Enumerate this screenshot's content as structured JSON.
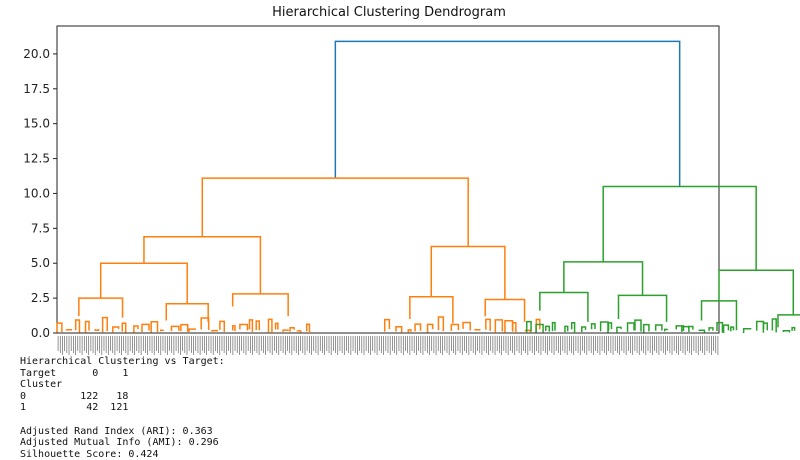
{
  "chart_data": {
    "type": "dendrogram",
    "title": "Hierarchical Clustering Dendrogram",
    "xlabel": "",
    "ylabel": "",
    "ylim": [
      0,
      22
    ],
    "yticks": [
      "0.0",
      "2.5",
      "5.0",
      "7.5",
      "10.0",
      "12.5",
      "15.0",
      "17.5",
      "20.0"
    ],
    "leaf_count": 303,
    "leaf_labels_legible": false,
    "colors": {
      "root": "#1f77b4",
      "cluster_0": "#ff7f0e",
      "cluster_1": "#2ca02c"
    },
    "merge_heights": {
      "root": 20.9,
      "cluster_0": 11.1,
      "cluster_1": 10.5,
      "cluster_0_left": 6.9,
      "cluster_0_right": 6.2,
      "cluster_1_left": 5.1,
      "cluster_1_right": 4.5
    },
    "links": [
      {
        "xl": 127.4,
        "yl": 11.1,
        "xr": 285.0,
        "yr": 10.5,
        "h": 20.9,
        "cluster": "root"
      },
      {
        "xl": 66.5,
        "yl": 6.9,
        "xr": 188.2,
        "yr": 6.2,
        "h": 11.1,
        "cluster": "cluster_0"
      },
      {
        "xl": 39.8,
        "yl": 5.0,
        "xr": 93.1,
        "yr": 2.8,
        "h": 6.9,
        "cluster": "cluster_0"
      },
      {
        "xl": 20.0,
        "yl": 2.5,
        "xr": 59.6,
        "yr": 2.1,
        "h": 5.0,
        "cluster": "cluster_0"
      },
      {
        "xl": 10.0,
        "yl": 1.2,
        "xr": 30.0,
        "yr": 1.1,
        "h": 2.5,
        "cluster": "cluster_0"
      },
      {
        "xl": 50.0,
        "yl": 0.9,
        "xr": 69.2,
        "yr": 0.8,
        "h": 2.1,
        "cluster": "cluster_0"
      },
      {
        "xl": 80.4,
        "yl": 1.9,
        "xr": 105.8,
        "yr": 1.2,
        "h": 2.8,
        "cluster": "cluster_0"
      },
      {
        "xl": 171.3,
        "yl": 2.6,
        "xr": 205.0,
        "yr": 2.4,
        "h": 6.2,
        "cluster": "cluster_0"
      },
      {
        "xl": 161.5,
        "yl": 1.0,
        "xr": 181.2,
        "yr": 0.7,
        "h": 2.6,
        "cluster": "cluster_0"
      },
      {
        "xl": 196.0,
        "yl": 1.2,
        "xr": 214.0,
        "yr": 0.8,
        "h": 2.4,
        "cluster": "cluster_0"
      },
      {
        "xl": 250.0,
        "yl": 5.1,
        "xr": 320.0,
        "yr": 4.5,
        "h": 10.5,
        "cluster": "cluster_1"
      },
      {
        "xl": 232.0,
        "yl": 2.9,
        "xr": 268.0,
        "yr": 2.7,
        "h": 5.1,
        "cluster": "cluster_1"
      },
      {
        "xl": 221.0,
        "yl": 1.6,
        "xr": 243.0,
        "yr": 0.8,
        "h": 2.9,
        "cluster": "cluster_1"
      },
      {
        "xl": 257.0,
        "yl": 1.0,
        "xr": 279.0,
        "yr": 0.8,
        "h": 2.7,
        "cluster": "cluster_1"
      },
      {
        "xl": 303.0,
        "yl": 2.3,
        "xr": 337.0,
        "yr": 1.3,
        "h": 4.5,
        "cluster": "cluster_1"
      },
      {
        "xl": 295.0,
        "yl": 0.9,
        "xr": 311.0,
        "yr": 0.2,
        "h": 2.3,
        "cluster": "cluster_1"
      },
      {
        "xl": 330.0,
        "yl": 0.4,
        "xr": 344.0,
        "yr": 0.2,
        "h": 1.3,
        "cluster": "cluster_1"
      }
    ]
  },
  "output": {
    "lines": [
      "Hierarchical Clustering vs Target:",
      "Target      0    1",
      "Cluster",
      "0         122   18",
      "1          42  121",
      "",
      "Adjusted Rand Index (ARI): 0.363",
      "Adjusted Mutual Info (AMI): 0.296",
      "Silhouette Score: 0.424"
    ]
  }
}
